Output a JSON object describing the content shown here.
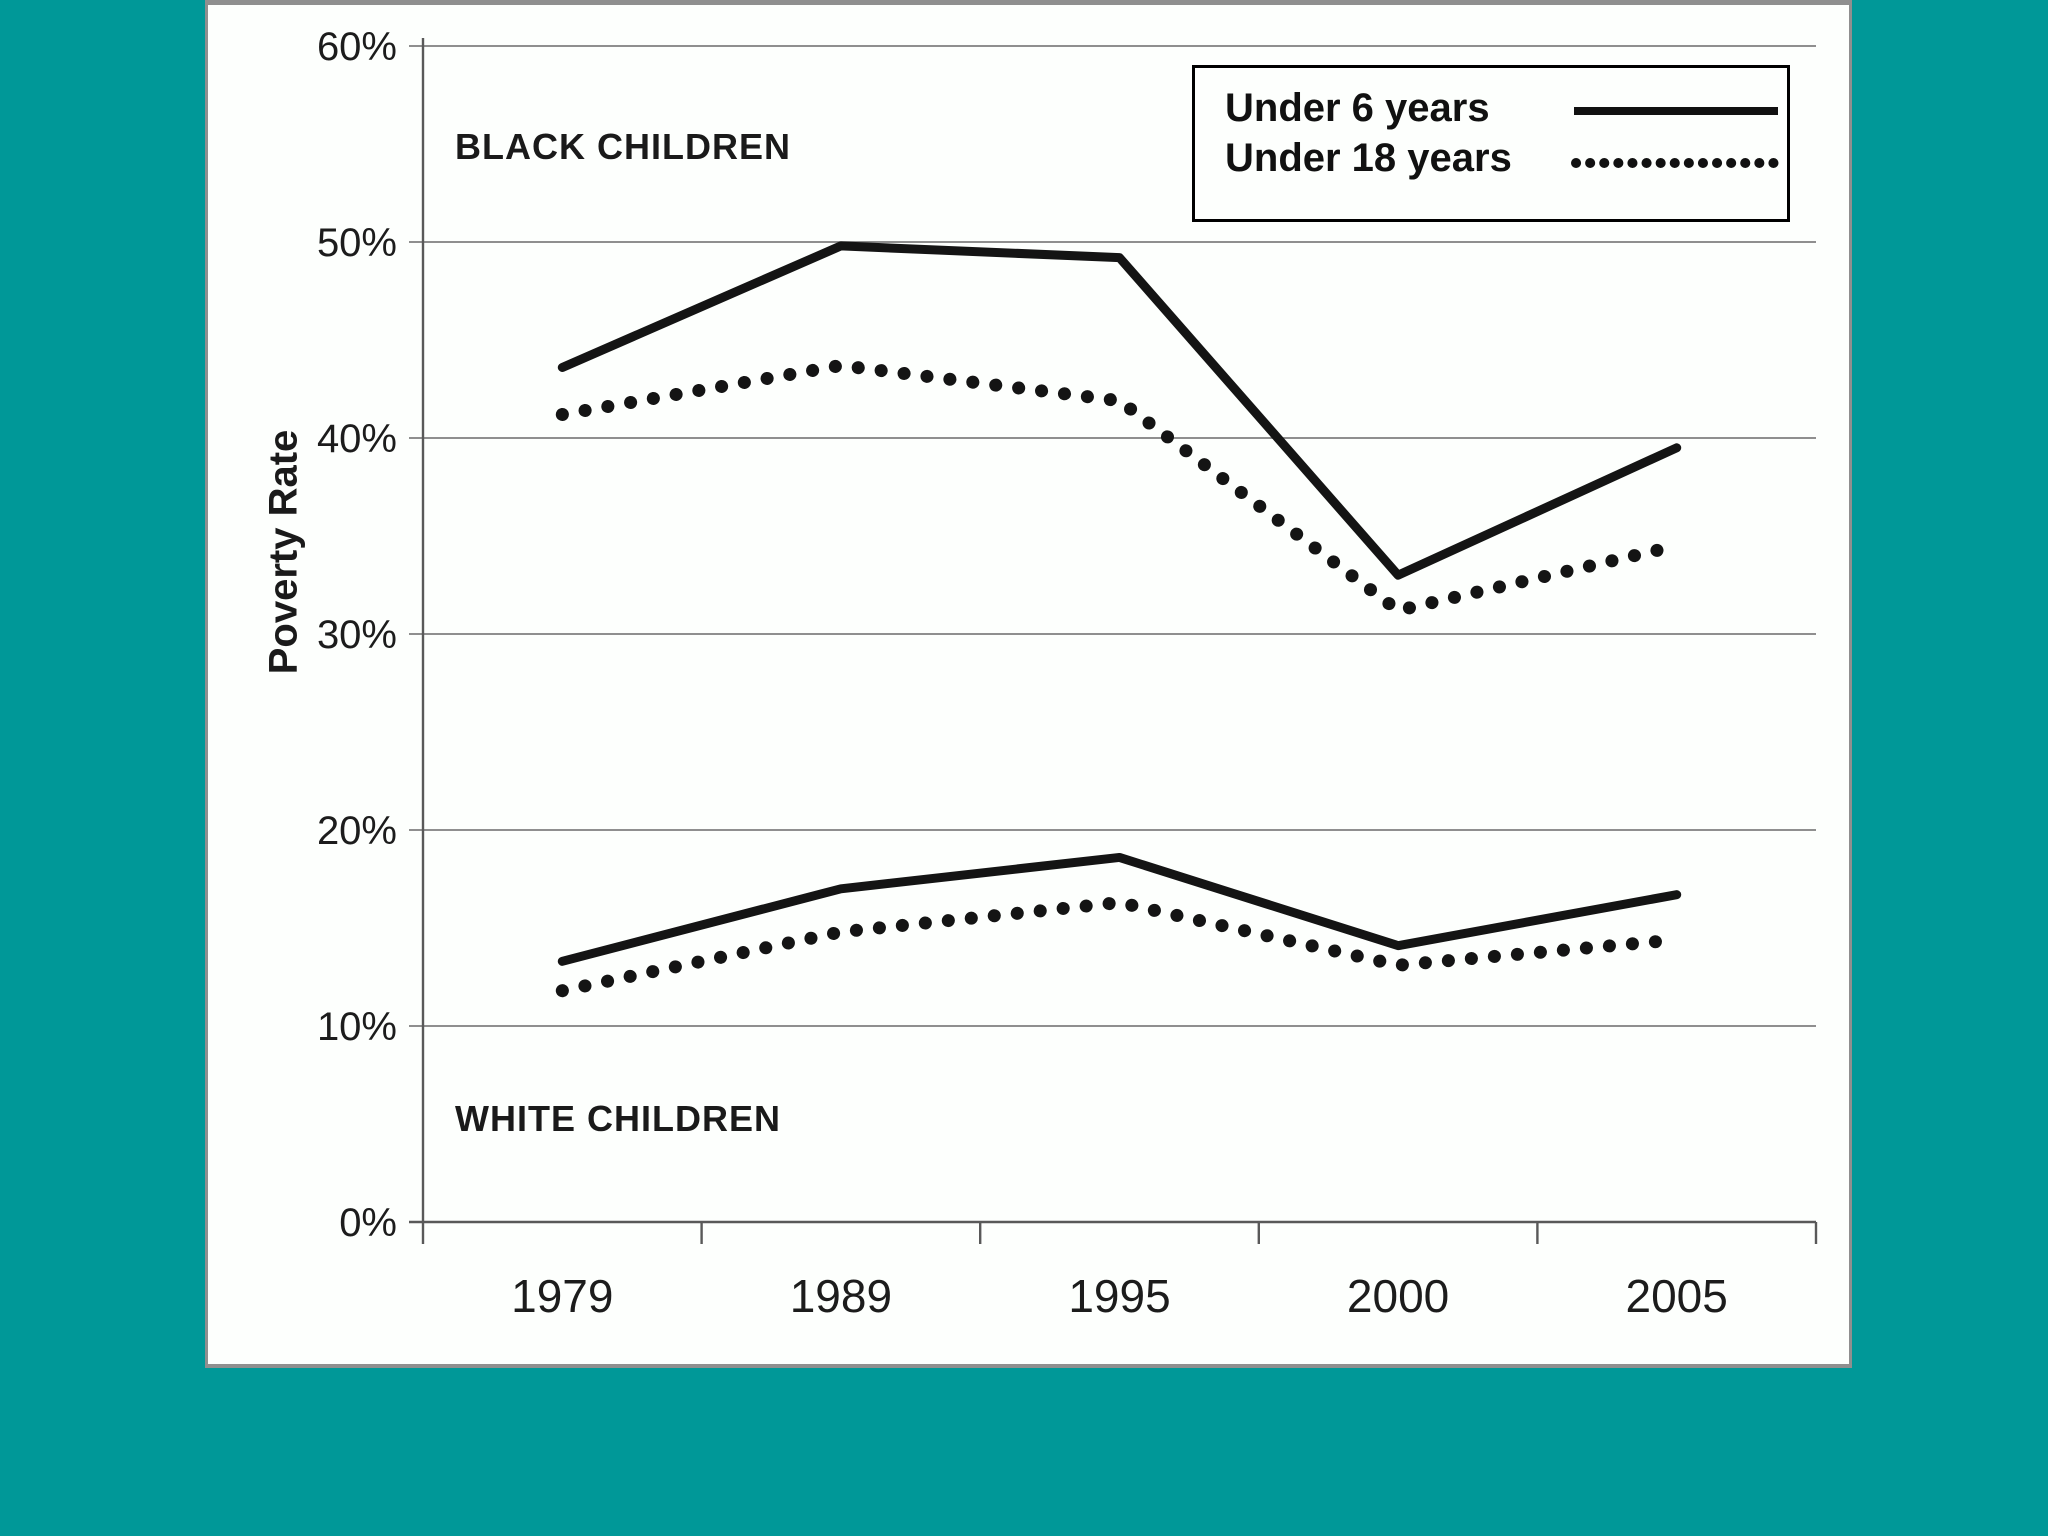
{
  "background_color": "#009898",
  "panel_color": "#fdfffd",
  "chart_data": {
    "type": "line",
    "title": "",
    "xlabel": "",
    "ylabel": "Poverty Rate",
    "ylim": [
      0,
      60
    ],
    "y_tick_step": 10,
    "y_tick_labels": [
      "0%",
      "10%",
      "20%",
      "30%",
      "40%",
      "50%",
      "60%"
    ],
    "categories": [
      "1979",
      "1989",
      "1995",
      "2000",
      "2005"
    ],
    "grid": true,
    "legend_position": "top-right",
    "legend": [
      {
        "label": "Under 6 years",
        "style": "solid"
      },
      {
        "label": "Under 18 years",
        "style": "dotted"
      }
    ],
    "annotations": [
      {
        "text": "BLACK CHILDREN"
      },
      {
        "text": "WHITE CHILDREN"
      }
    ],
    "series": [
      {
        "name": "Black children (Under 6 years)",
        "group": "BLACK CHILDREN",
        "style": "solid",
        "values": [
          43.6,
          49.8,
          49.2,
          33.0,
          39.5
        ]
      },
      {
        "name": "Black children (Under 18 years)",
        "group": "BLACK CHILDREN",
        "style": "dotted",
        "values": [
          41.2,
          43.7,
          41.9,
          31.2,
          34.5
        ]
      },
      {
        "name": "White children (Under 6 years)",
        "group": "WHITE CHILDREN",
        "style": "solid",
        "values": [
          13.3,
          17.0,
          18.6,
          14.1,
          16.7
        ]
      },
      {
        "name": "White children (Under 18 years)",
        "group": "WHITE CHILDREN",
        "style": "dotted",
        "values": [
          11.8,
          14.8,
          16.3,
          13.1,
          14.4
        ]
      }
    ],
    "line_color": "#141414"
  }
}
